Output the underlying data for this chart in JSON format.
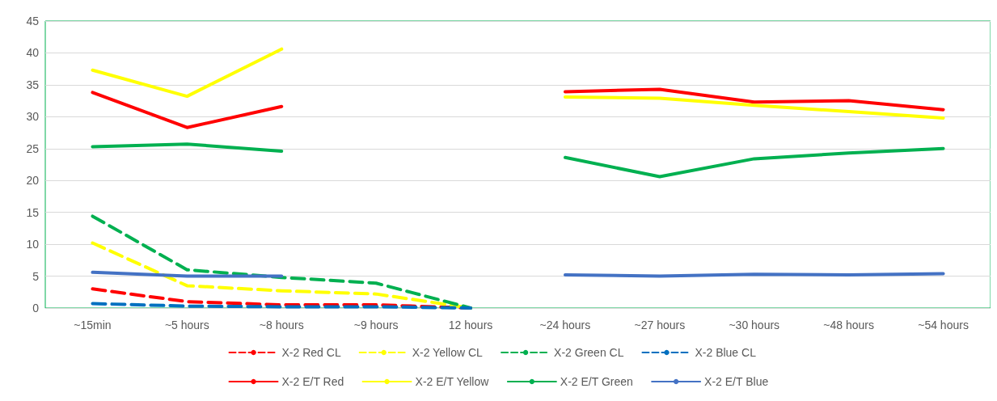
{
  "chart_data": {
    "type": "line",
    "categories": [
      "~15min",
      "~5 hours",
      "~8 hours",
      "~9 hours",
      "12 hours",
      "~24 hours",
      "~27 hours",
      "~30 hours",
      "~48 hours",
      "~54 hours"
    ],
    "ylim": [
      0,
      45
    ],
    "yticks": [
      0,
      5,
      10,
      15,
      20,
      25,
      30,
      35,
      40,
      45
    ],
    "grid": "y",
    "legend": "bottom",
    "marker": "none",
    "series": [
      {
        "name": "X-2 Red CL",
        "color": "#ff0000",
        "line_style": "dashed",
        "values": [
          3.0,
          1.0,
          0.5,
          0.5,
          0,
          null,
          null,
          null,
          null,
          null
        ]
      },
      {
        "name": "X-2 Yellow CL",
        "color": "#ffff00",
        "line_style": "dashed",
        "values": [
          10.2,
          3.5,
          2.7,
          2.2,
          0,
          null,
          null,
          null,
          null,
          null
        ]
      },
      {
        "name": "X-2 Green CL",
        "color": "#00b050",
        "line_style": "dashed",
        "values": [
          14.4,
          6.0,
          4.8,
          3.9,
          0,
          null,
          null,
          null,
          null,
          null
        ]
      },
      {
        "name": "X-2 Blue CL",
        "color": "#0070c0",
        "line_style": "dashed",
        "values": [
          0.7,
          0.3,
          0.2,
          0.2,
          0,
          null,
          null,
          null,
          null,
          null
        ]
      },
      {
        "name": "X-2 E/T Red",
        "color": "#ff0000",
        "line_style": "solid",
        "values": [
          33.8,
          28.3,
          31.6,
          null,
          null,
          33.9,
          34.3,
          32.3,
          32.5,
          31.1
        ]
      },
      {
        "name": "X-2 E/T Yellow",
        "color": "#ffff00",
        "line_style": "solid",
        "values": [
          37.3,
          33.2,
          40.6,
          null,
          null,
          33.1,
          32.9,
          31.8,
          30.8,
          29.8
        ]
      },
      {
        "name": "X-2 E/T Green",
        "color": "#00b050",
        "line_style": "solid",
        "values": [
          25.3,
          25.7,
          24.6,
          null,
          null,
          23.6,
          20.6,
          23.4,
          24.3,
          25.0
        ]
      },
      {
        "name": "X-2 E/T Blue",
        "color": "#4472c4",
        "line_style": "solid",
        "values": [
          5.6,
          5.0,
          5.0,
          null,
          null,
          5.2,
          5.0,
          5.3,
          5.2,
          5.4
        ]
      }
    ]
  }
}
